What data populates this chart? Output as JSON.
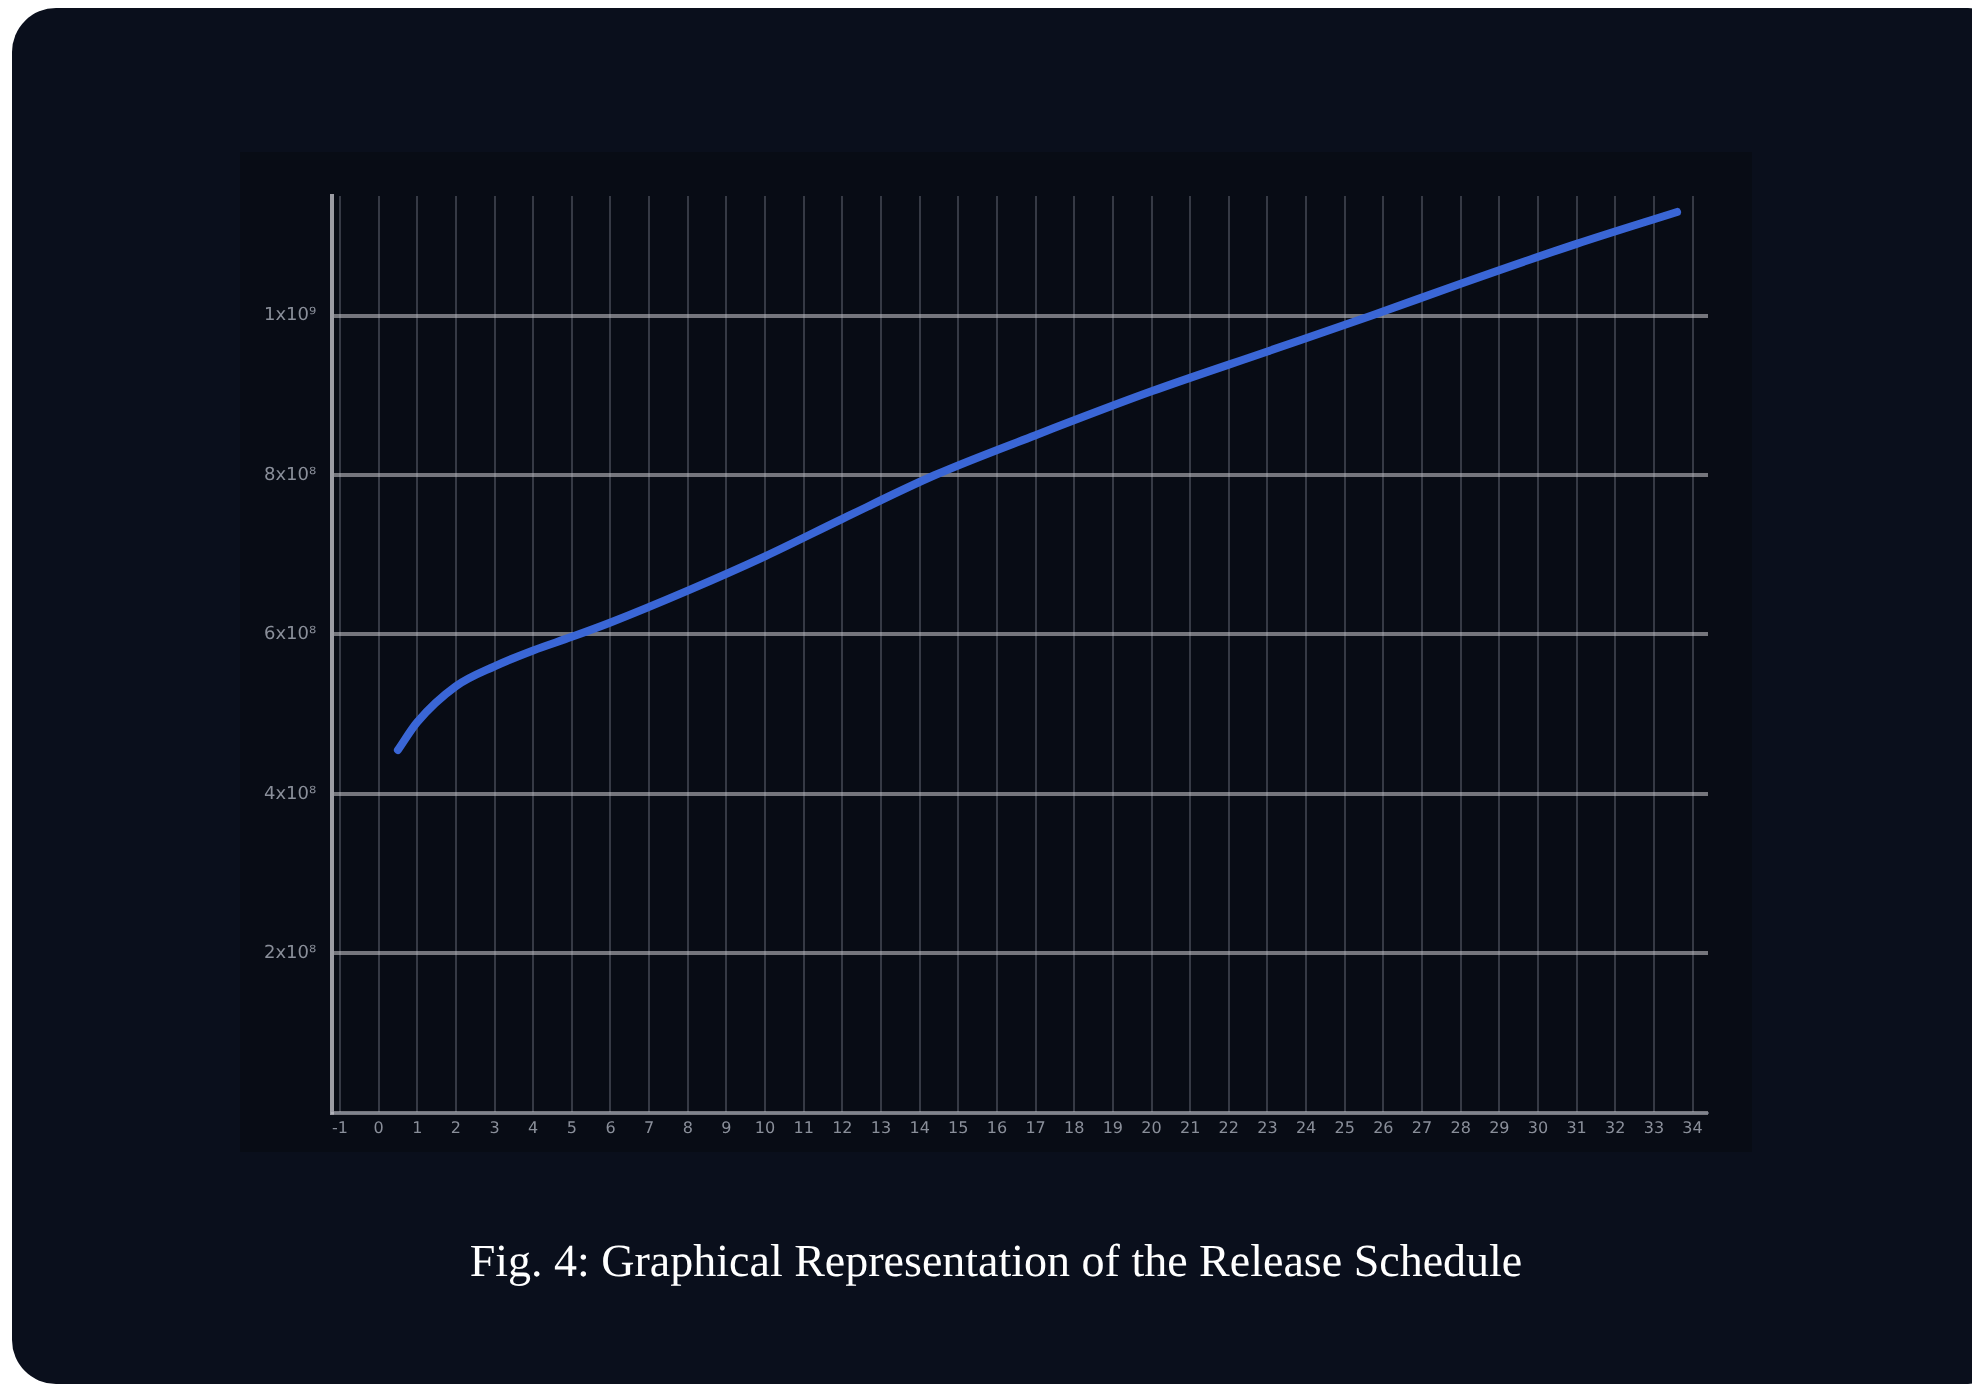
{
  "chart_data": {
    "type": "line",
    "title": "Fig. 4: Graphical Representation of the Release Schedule",
    "x": [
      0.5,
      1,
      2,
      3,
      4,
      5,
      6,
      8,
      10,
      12,
      14.4,
      17,
      20,
      23,
      25.7,
      28,
      31,
      33.6
    ],
    "series": [
      {
        "color": "#3a66d6",
        "values": [
          455000000,
          490000000,
          535000000,
          560000000,
          580000000,
          597000000,
          615000000,
          655000000,
          698000000,
          745000000,
          800000000,
          850000000,
          905000000,
          955000000,
          1000000000,
          1040000000,
          1090000000,
          1130000000
        ]
      }
    ],
    "xlim": [
      -1.2,
      34.4
    ],
    "xticks": [
      -1,
      0,
      1,
      2,
      3,
      4,
      5,
      6,
      7,
      8,
      9,
      10,
      11,
      12,
      13,
      14,
      15,
      16,
      17,
      18,
      19,
      20,
      21,
      22,
      23,
      24,
      25,
      26,
      27,
      28,
      29,
      30,
      31,
      32,
      33,
      34
    ],
    "ylim": [
      0,
      1150000000
    ],
    "yticks": [
      {
        "value": 0,
        "label": null
      },
      {
        "value": 200000000,
        "label": "2x10⁸"
      },
      {
        "value": 400000000,
        "label": "4x10⁸"
      },
      {
        "value": 600000000,
        "label": "6x10⁸"
      },
      {
        "value": 800000000,
        "label": "8x10⁸"
      },
      {
        "value": 1000000000,
        "label": "1x10⁹"
      }
    ],
    "grid": true,
    "marker": "none",
    "line_style": "solid",
    "legend": false
  }
}
